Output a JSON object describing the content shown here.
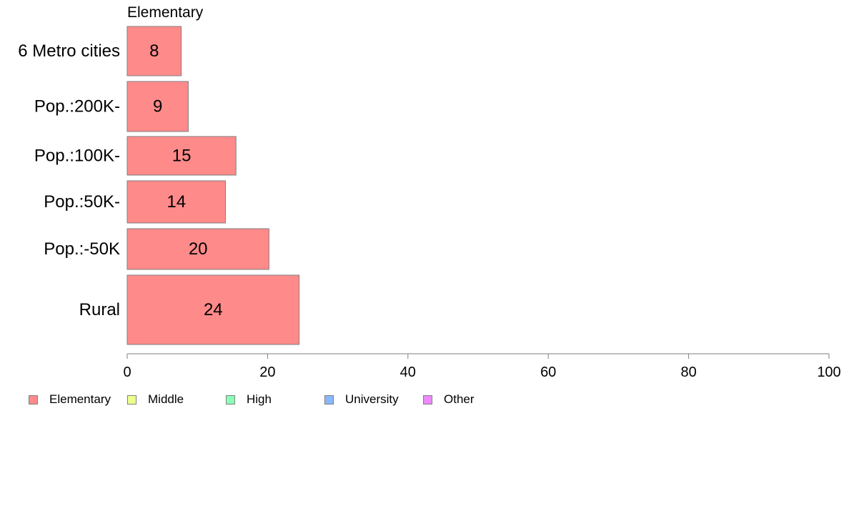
{
  "chart_data": {
    "type": "bar",
    "orientation": "horizontal",
    "panel_title": "Elementary",
    "categories": [
      "6 Metro cities",
      "Pop.:200K-",
      "Pop.:100K-",
      "Pop.:50K-",
      "Pop.:-50K",
      "Rural"
    ],
    "series": [
      {
        "name": "Elementary",
        "values": [
          8,
          9,
          15,
          14,
          20,
          24
        ],
        "value_positions": [
          7.7,
          8.7,
          15.5,
          14.0,
          20.2,
          24.5
        ],
        "color": "#FF8A8A"
      }
    ],
    "xlim": [
      0,
      100
    ],
    "xticks": [
      0,
      20,
      40,
      60,
      80,
      100
    ],
    "xlabel": "",
    "ylabel": "",
    "grid": false,
    "legend": {
      "placement": "bottom-left",
      "entries": [
        {
          "name": "Elementary",
          "color": "#FF8A8A"
        },
        {
          "name": "Middle",
          "color": "#EEFF8A"
        },
        {
          "name": "High",
          "color": "#8AFFB8"
        },
        {
          "name": "University",
          "color": "#8AB8FF"
        },
        {
          "name": "Other",
          "color": "#EE8AFF"
        }
      ]
    }
  }
}
